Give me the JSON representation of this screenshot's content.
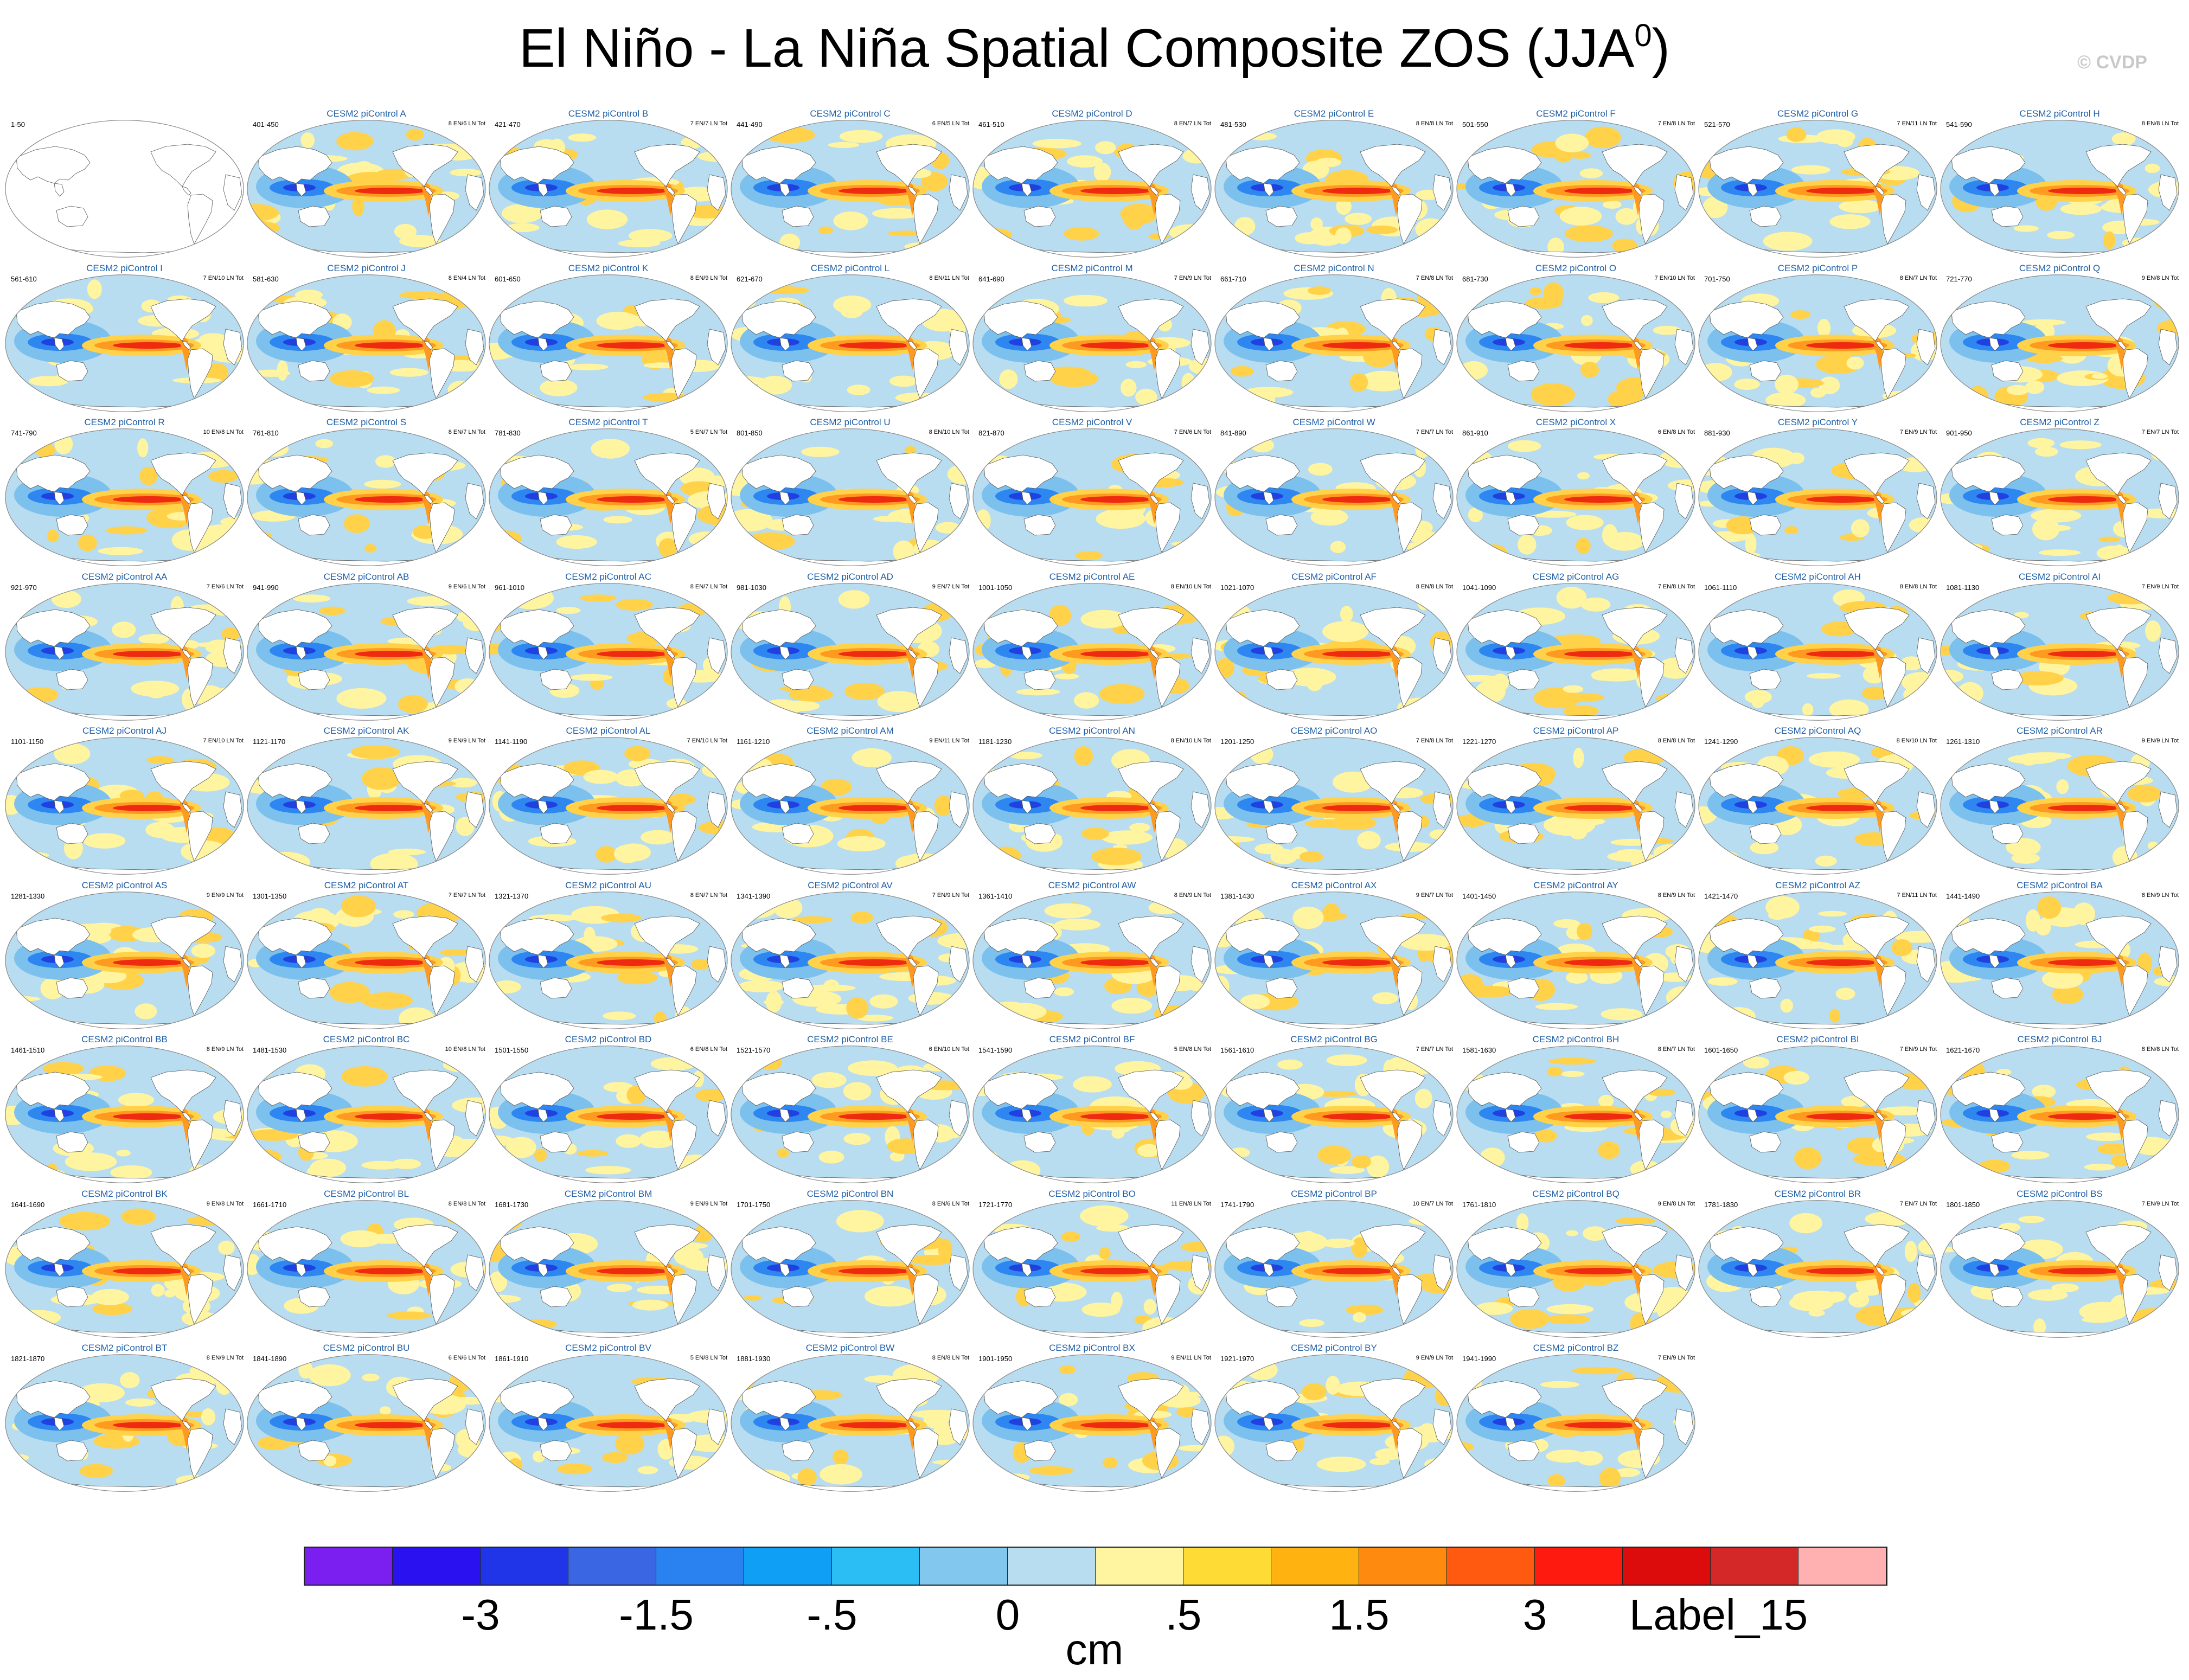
{
  "title_main": "El Niño - La Niña Spatial Composite ZOS (JJA",
  "title_sup": "0",
  "title_close": ")",
  "credit": "© CVDP",
  "panels": [
    {
      "title": "",
      "years": "1-50",
      "stats": "",
      "blank": true
    },
    {
      "title": "CESM2 piControl A",
      "years": "401-450",
      "stats": "8 EN/6 LN Tot"
    },
    {
      "title": "CESM2 piControl B",
      "years": "421-470",
      "stats": "7 EN/7 LN Tot"
    },
    {
      "title": "CESM2 piControl C",
      "years": "441-490",
      "stats": "6 EN/5 LN Tot"
    },
    {
      "title": "CESM2 piControl D",
      "years": "461-510",
      "stats": "8 EN/7 LN Tot"
    },
    {
      "title": "CESM2 piControl E",
      "years": "481-530",
      "stats": "8 EN/8 LN Tot"
    },
    {
      "title": "CESM2 piControl F",
      "years": "501-550",
      "stats": "7 EN/8 LN Tot"
    },
    {
      "title": "CESM2 piControl G",
      "years": "521-570",
      "stats": "7 EN/11 LN Tot"
    },
    {
      "title": "CESM2 piControl H",
      "years": "541-590",
      "stats": "8 EN/8 LN Tot"
    },
    {
      "title": "CESM2 piControl I",
      "years": "561-610",
      "stats": "7 EN/10 LN Tot"
    },
    {
      "title": "CESM2 piControl J",
      "years": "581-630",
      "stats": "8 EN/4 LN Tot"
    },
    {
      "title": "CESM2 piControl K",
      "years": "601-650",
      "stats": "8 EN/9 LN Tot"
    },
    {
      "title": "CESM2 piControl L",
      "years": "621-670",
      "stats": "8 EN/11 LN Tot"
    },
    {
      "title": "CESM2 piControl M",
      "years": "641-690",
      "stats": "7 EN/9 LN Tot"
    },
    {
      "title": "CESM2 piControl N",
      "years": "661-710",
      "stats": "7 EN/8 LN Tot"
    },
    {
      "title": "CESM2 piControl O",
      "years": "681-730",
      "stats": "7 EN/10 LN Tot"
    },
    {
      "title": "CESM2 piControl P",
      "years": "701-750",
      "stats": "8 EN/7 LN Tot"
    },
    {
      "title": "CESM2 piControl Q",
      "years": "721-770",
      "stats": "9 EN/8 LN Tot"
    },
    {
      "title": "CESM2 piControl R",
      "years": "741-790",
      "stats": "10 EN/8 LN Tot"
    },
    {
      "title": "CESM2 piControl S",
      "years": "761-810",
      "stats": "8 EN/7 LN Tot"
    },
    {
      "title": "CESM2 piControl T",
      "years": "781-830",
      "stats": "5 EN/7 LN Tot"
    },
    {
      "title": "CESM2 piControl U",
      "years": "801-850",
      "stats": "8 EN/10 LN Tot"
    },
    {
      "title": "CESM2 piControl V",
      "years": "821-870",
      "stats": "7 EN/6 LN Tot"
    },
    {
      "title": "CESM2 piControl W",
      "years": "841-890",
      "stats": "7 EN/7 LN Tot"
    },
    {
      "title": "CESM2 piControl X",
      "years": "861-910",
      "stats": "6 EN/8 LN Tot"
    },
    {
      "title": "CESM2 piControl Y",
      "years": "881-930",
      "stats": "7 EN/9 LN Tot"
    },
    {
      "title": "CESM2 piControl Z",
      "years": "901-950",
      "stats": "7 EN/7 LN Tot"
    },
    {
      "title": "CESM2 piControl AA",
      "years": "921-970",
      "stats": "7 EN/6 LN Tot"
    },
    {
      "title": "CESM2 piControl AB",
      "years": "941-990",
      "stats": "9 EN/6 LN Tot"
    },
    {
      "title": "CESM2 piControl AC",
      "years": "961-1010",
      "stats": "8 EN/7 LN Tot"
    },
    {
      "title": "CESM2 piControl AD",
      "years": "981-1030",
      "stats": "9 EN/7 LN Tot"
    },
    {
      "title": "CESM2 piControl AE",
      "years": "1001-1050",
      "stats": "8 EN/10 LN Tot"
    },
    {
      "title": "CESM2 piControl AF",
      "years": "1021-1070",
      "stats": "8 EN/8 LN Tot"
    },
    {
      "title": "CESM2 piControl AG",
      "years": "1041-1090",
      "stats": "7 EN/8 LN Tot"
    },
    {
      "title": "CESM2 piControl AH",
      "years": "1061-1110",
      "stats": "8 EN/8 LN Tot"
    },
    {
      "title": "CESM2 piControl AI",
      "years": "1081-1130",
      "stats": "7 EN/9 LN Tot"
    },
    {
      "title": "CESM2 piControl AJ",
      "years": "1101-1150",
      "stats": "7 EN/10 LN Tot"
    },
    {
      "title": "CESM2 piControl AK",
      "years": "1121-1170",
      "stats": "9 EN/9 LN Tot"
    },
    {
      "title": "CESM2 piControl AL",
      "years": "1141-1190",
      "stats": "7 EN/10 LN Tot"
    },
    {
      "title": "CESM2 piControl AM",
      "years": "1161-1210",
      "stats": "9 EN/11 LN Tot"
    },
    {
      "title": "CESM2 piControl AN",
      "years": "1181-1230",
      "stats": "8 EN/10 LN Tot"
    },
    {
      "title": "CESM2 piControl AO",
      "years": "1201-1250",
      "stats": "7 EN/8 LN Tot"
    },
    {
      "title": "CESM2 piControl AP",
      "years": "1221-1270",
      "stats": "8 EN/8 LN Tot"
    },
    {
      "title": "CESM2 piControl AQ",
      "years": "1241-1290",
      "stats": "8 EN/10 LN Tot"
    },
    {
      "title": "CESM2 piControl AR",
      "years": "1261-1310",
      "stats": "9 EN/9 LN Tot"
    },
    {
      "title": "CESM2 piControl AS",
      "years": "1281-1330",
      "stats": "9 EN/9 LN Tot"
    },
    {
      "title": "CESM2 piControl AT",
      "years": "1301-1350",
      "stats": "7 EN/7 LN Tot"
    },
    {
      "title": "CESM2 piControl AU",
      "years": "1321-1370",
      "stats": "8 EN/7 LN Tot"
    },
    {
      "title": "CESM2 piControl AV",
      "years": "1341-1390",
      "stats": "7 EN/9 LN Tot"
    },
    {
      "title": "CESM2 piControl AW",
      "years": "1361-1410",
      "stats": "8 EN/9 LN Tot"
    },
    {
      "title": "CESM2 piControl AX",
      "years": "1381-1430",
      "stats": "9 EN/7 LN Tot"
    },
    {
      "title": "CESM2 piControl AY",
      "years": "1401-1450",
      "stats": "8 EN/9 LN Tot"
    },
    {
      "title": "CESM2 piControl AZ",
      "years": "1421-1470",
      "stats": "7 EN/11 LN Tot"
    },
    {
      "title": "CESM2 piControl BA",
      "years": "1441-1490",
      "stats": "8 EN/9 LN Tot"
    },
    {
      "title": "CESM2 piControl BB",
      "years": "1461-1510",
      "stats": "8 EN/9 LN Tot"
    },
    {
      "title": "CESM2 piControl BC",
      "years": "1481-1530",
      "stats": "10 EN/8 LN Tot"
    },
    {
      "title": "CESM2 piControl BD",
      "years": "1501-1550",
      "stats": "6 EN/8 LN Tot"
    },
    {
      "title": "CESM2 piControl BE",
      "years": "1521-1570",
      "stats": "6 EN/10 LN Tot"
    },
    {
      "title": "CESM2 piControl BF",
      "years": "1541-1590",
      "stats": "5 EN/8 LN Tot"
    },
    {
      "title": "CESM2 piControl BG",
      "years": "1561-1610",
      "stats": "7 EN/7 LN Tot"
    },
    {
      "title": "CESM2 piControl BH",
      "years": "1581-1630",
      "stats": "8 EN/7 LN Tot"
    },
    {
      "title": "CESM2 piControl BI",
      "years": "1601-1650",
      "stats": "7 EN/9 LN Tot"
    },
    {
      "title": "CESM2 piControl BJ",
      "years": "1621-1670",
      "stats": "8 EN/8 LN Tot"
    },
    {
      "title": "CESM2 piControl BK",
      "years": "1641-1690",
      "stats": "9 EN/8 LN Tot"
    },
    {
      "title": "CESM2 piControl BL",
      "years": "1661-1710",
      "stats": "8 EN/8 LN Tot"
    },
    {
      "title": "CESM2 piControl BM",
      "years": "1681-1730",
      "stats": "9 EN/9 LN Tot"
    },
    {
      "title": "CESM2 piControl BN",
      "years": "1701-1750",
      "stats": "8 EN/6 LN Tot"
    },
    {
      "title": "CESM2 piControl BO",
      "years": "1721-1770",
      "stats": "11 EN/8 LN Tot"
    },
    {
      "title": "CESM2 piControl BP",
      "years": "1741-1790",
      "stats": "10 EN/7 LN Tot"
    },
    {
      "title": "CESM2 piControl BQ",
      "years": "1761-1810",
      "stats": "9 EN/8 LN Tot"
    },
    {
      "title": "CESM2 piControl BR",
      "years": "1781-1830",
      "stats": "7 EN/7 LN Tot"
    },
    {
      "title": "CESM2 piControl BS",
      "years": "1801-1850",
      "stats": "7 EN/9 LN Tot"
    },
    {
      "title": "CESM2 piControl BT",
      "years": "1821-1870",
      "stats": "8 EN/9 LN Tot"
    },
    {
      "title": "CESM2 piControl BU",
      "years": "1841-1890",
      "stats": "6 EN/6 LN Tot"
    },
    {
      "title": "CESM2 piControl BV",
      "years": "1861-1910",
      "stats": "5 EN/8 LN Tot"
    },
    {
      "title": "CESM2 piControl BW",
      "years": "1881-1930",
      "stats": "8 EN/8 LN Tot"
    },
    {
      "title": "CESM2 piControl BX",
      "years": "1901-1950",
      "stats": "9 EN/11 LN Tot"
    },
    {
      "title": "CESM2 piControl BY",
      "years": "1921-1970",
      "stats": "9 EN/9 LN Tot"
    },
    {
      "title": "CESM2 piControl BZ",
      "years": "1941-1990",
      "stats": "7 EN/9 LN Tot"
    }
  ],
  "map_colors": {
    "ocean": "#b8dcf0",
    "land": "#ffffff",
    "outline": "#555555",
    "warm_light": "#fff4a0",
    "warm_mid": "#ffd24a",
    "warm_orange": "#ff9a20",
    "warm_red": "#ee2a10",
    "cool_light": "#7cc0ee",
    "cool_mid": "#2e86f0",
    "cool_deep": "#2040e0"
  },
  "colorbar": {
    "colors": [
      "#7a1ff0",
      "#2a12f0",
      "#2035e8",
      "#3a66e4",
      "#2a82f0",
      "#0fa0f5",
      "#2bbef5",
      "#82c8ee",
      "#b8dcf0",
      "#fff4a0",
      "#ffdc35",
      "#ffb210",
      "#ff8a10",
      "#ff5a10",
      "#ff1a10",
      "#dd0c0c",
      "#d42828",
      "#ffb0b0"
    ],
    "ticks": [
      "-3",
      "-1.5",
      "-.5",
      "0",
      ".5",
      "1.5",
      "3",
      "Label_15"
    ],
    "units": "cm"
  }
}
